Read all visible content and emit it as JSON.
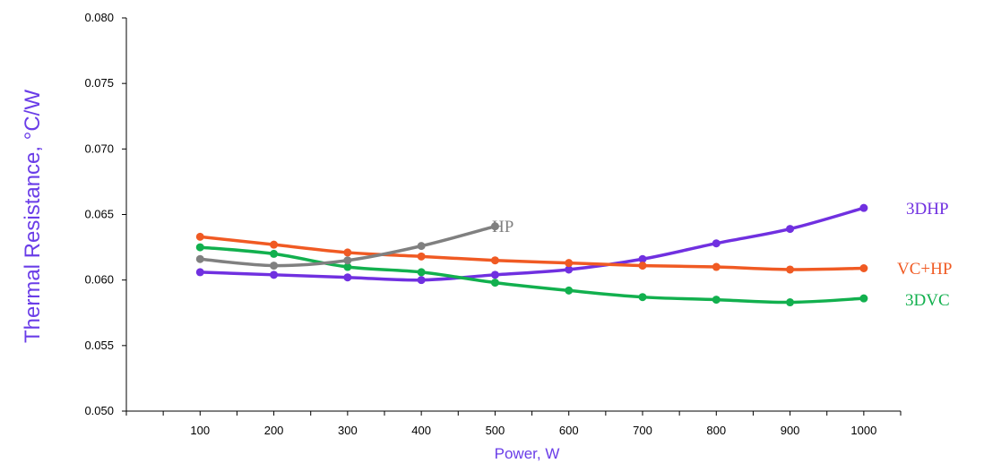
{
  "chart_data": {
    "type": "line",
    "title": "",
    "xlabel": "Power, W",
    "ylabel": "Thermal Resistance, °C/W",
    "xlim": [
      0,
      1050
    ],
    "ylim": [
      0.05,
      0.08
    ],
    "x_ticks": [
      100,
      200,
      300,
      400,
      500,
      600,
      700,
      800,
      900,
      1000
    ],
    "y_ticks": [
      "0.050",
      "0.055",
      "0.060",
      "0.065",
      "0.070",
      "0.075",
      "0.080"
    ],
    "grid": false,
    "legend": "inline labels at series ends",
    "series": [
      {
        "name": "3DHP",
        "color": "#7030e0",
        "x": [
          100,
          200,
          300,
          400,
          500,
          600,
          700,
          800,
          900,
          1000
        ],
        "values": [
          0.0606,
          0.0604,
          0.0602,
          0.06,
          0.0604,
          0.0608,
          0.0616,
          0.0628,
          0.0639,
          0.0655
        ]
      },
      {
        "name": "VC+HP",
        "color": "#f05a23",
        "x": [
          100,
          200,
          300,
          400,
          500,
          600,
          700,
          800,
          900,
          1000
        ],
        "values": [
          0.0633,
          0.0627,
          0.0621,
          0.0618,
          0.0615,
          0.0613,
          0.0611,
          0.061,
          0.0608,
          0.0609
        ]
      },
      {
        "name": "3DVC",
        "color": "#12b04e",
        "x": [
          100,
          200,
          300,
          400,
          500,
          600,
          700,
          800,
          900,
          1000
        ],
        "values": [
          0.0625,
          0.062,
          0.061,
          0.0606,
          0.0598,
          0.0592,
          0.0587,
          0.0585,
          0.0583,
          0.0586
        ]
      },
      {
        "name": "HP",
        "color": "#808080",
        "x": [
          100,
          200,
          300,
          400,
          500
        ],
        "values": [
          0.0616,
          0.0611,
          0.0615,
          0.0626,
          0.0641
        ]
      }
    ]
  }
}
